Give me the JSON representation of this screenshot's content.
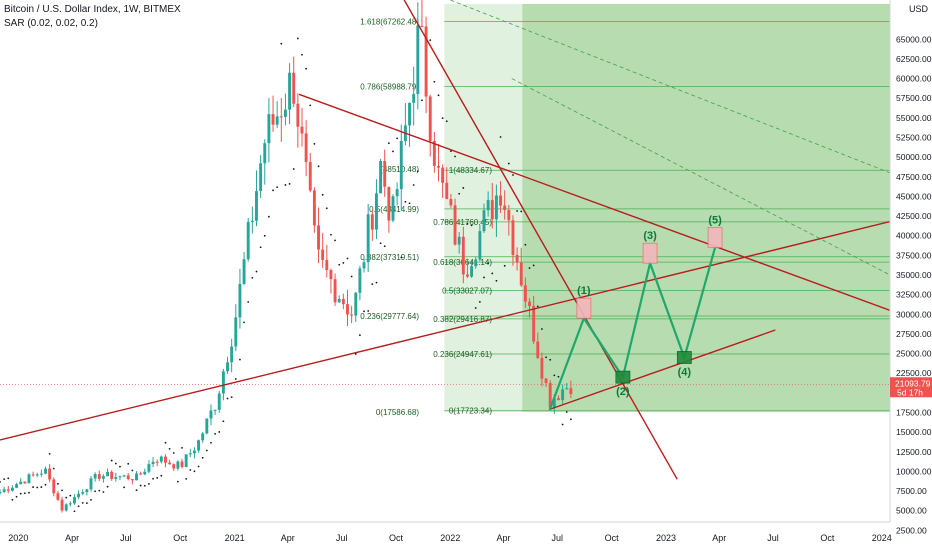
{
  "header": {
    "symbol_line": "Bitcoin / U.S. Dollar Index, 1W, BITMEX",
    "indicator_line": "SAR (0.02, 0.02, 0.2)"
  },
  "chart_data": {
    "type": "candlestick",
    "title": "Bitcoin / U.S. Dollar Index, 1W, BITMEX",
    "indicator": "SAR (0.02, 0.02, 0.2)",
    "price_axis": {
      "currency": "USD",
      "range": [
        0,
        70000
      ],
      "ticks": [
        2500,
        5000,
        7500,
        10000,
        12500,
        15000,
        17500,
        20000,
        22500,
        25000,
        27500,
        30000,
        32500,
        35000,
        37500,
        40000,
        42500,
        45000,
        47500,
        50000,
        52500,
        55000,
        57500,
        60000,
        62500,
        65000
      ],
      "tick_labels": [
        "2500.00",
        "5000.00",
        "7500.00",
        "10000.00",
        "12500.00",
        "15000.00",
        "17500.00",
        "20000.00",
        "22500.00",
        "25000.00",
        "27500.00",
        "30000.00",
        "32500.00",
        "35000.00",
        "37500.00",
        "40000.00",
        "42500.00",
        "45000.00",
        "47500.00",
        "50000.00",
        "52500.00",
        "55000.00",
        "57500.00",
        "60000.00",
        "62500.00",
        "65000.00"
      ]
    },
    "time_axis": {
      "range": [
        "2019-12-01",
        "2024-01-15"
      ],
      "ticks": [
        {
          "date": "2020-01-01",
          "label": "2020"
        },
        {
          "date": "2020-04-01",
          "label": "Apr"
        },
        {
          "date": "2020-07-01",
          "label": "Jul"
        },
        {
          "date": "2020-10-01",
          "label": "Oct"
        },
        {
          "date": "2021-01-01",
          "label": "2021"
        },
        {
          "date": "2021-04-01",
          "label": "Apr"
        },
        {
          "date": "2021-07-01",
          "label": "Jul"
        },
        {
          "date": "2021-10-01",
          "label": "Oct"
        },
        {
          "date": "2022-01-01",
          "label": "2022"
        },
        {
          "date": "2022-04-01",
          "label": "Apr"
        },
        {
          "date": "2022-07-01",
          "label": "Jul"
        },
        {
          "date": "2022-10-01",
          "label": "Oct"
        },
        {
          "date": "2023-01-01",
          "label": "2023"
        },
        {
          "date": "2023-04-01",
          "label": "Apr"
        },
        {
          "date": "2023-07-01",
          "label": "Jul"
        },
        {
          "date": "2023-10-01",
          "label": "Oct"
        },
        {
          "date": "2024-01-01",
          "label": "2024"
        }
      ]
    },
    "last_price": {
      "value": 21093.79,
      "label": "21093.79",
      "countdown": "5d 17h"
    },
    "price_path_anchors": [
      {
        "date": "2019-12-01",
        "value": 7400
      },
      {
        "date": "2020-02-15",
        "value": 10200
      },
      {
        "date": "2020-03-15",
        "value": 5200
      },
      {
        "date": "2020-05-15",
        "value": 9500
      },
      {
        "date": "2020-07-20",
        "value": 9200
      },
      {
        "date": "2020-08-20",
        "value": 11800
      },
      {
        "date": "2020-10-01",
        "value": 10600
      },
      {
        "date": "2020-11-01",
        "value": 13800
      },
      {
        "date": "2020-12-01",
        "value": 19000
      },
      {
        "date": "2021-01-01",
        "value": 29000
      },
      {
        "date": "2021-02-20",
        "value": 52000
      },
      {
        "date": "2021-04-10",
        "value": 60000
      },
      {
        "date": "2021-05-20",
        "value": 37000
      },
      {
        "date": "2021-07-20",
        "value": 30000
      },
      {
        "date": "2021-09-05",
        "value": 49000
      },
      {
        "date": "2021-09-25",
        "value": 42000
      },
      {
        "date": "2021-11-10",
        "value": 66000
      },
      {
        "date": "2021-12-10",
        "value": 48000
      },
      {
        "date": "2022-01-25",
        "value": 36000
      },
      {
        "date": "2022-03-28",
        "value": 46500
      },
      {
        "date": "2022-05-15",
        "value": 30000
      },
      {
        "date": "2022-06-18",
        "value": 19000
      },
      {
        "date": "2022-07-10",
        "value": 20500
      },
      {
        "date": "2022-07-24",
        "value": 21094
      }
    ],
    "fib_labels_left": [
      {
        "text": "1.618(67262.48)",
        "value": 67262.48
      },
      {
        "text": "0.786(58988.79)",
        "value": 58988.79
      },
      {
        "text": "(48510.48)",
        "value": 48510.48
      },
      {
        "text": "0.5(43414.99)",
        "value": 43414.99
      },
      {
        "text": "0.382(37319.51)",
        "value": 37319.51
      },
      {
        "text": "0.236(29777.64)",
        "value": 29777.64
      },
      {
        "text": "0(17586.68)",
        "value": 17586.68
      }
    ],
    "fib_labels_right": [
      {
        "text": "1(48334.67)",
        "value": 48334.67
      },
      {
        "text": "0.786(41760.45)",
        "value": 41760.45
      },
      {
        "text": "0.618(36641.14)",
        "value": 36641.14
      },
      {
        "text": "0.5(33027.07)",
        "value": 33027.07
      },
      {
        "text": "0.382(29416.87)",
        "value": 29416.87
      },
      {
        "text": "0.236(24947.61)",
        "value": 24947.61
      },
      {
        "text": "0(17723.34)",
        "value": 17723.34
      }
    ],
    "horizontal_levels": [
      67262.48,
      58988.79,
      48334.67,
      43414.99,
      41760.45,
      37319.51,
      36641.14,
      33027.07,
      29777.64,
      29416.87,
      24947.61,
      17723.34
    ],
    "wave_projection": [
      {
        "label": "",
        "date": "2022-06-18",
        "value": 17800
      },
      {
        "label": "(1)",
        "date": "2022-08-15",
        "value": 29500
      },
      {
        "label": "(2)",
        "date": "2022-10-20",
        "value": 22000
      },
      {
        "label": "(3)",
        "date": "2022-12-05",
        "value": 36500
      },
      {
        "label": "(4)",
        "date": "2023-02-01",
        "value": 24500
      },
      {
        "label": "(5)",
        "date": "2023-03-25",
        "value": 38500
      }
    ],
    "trendlines": [
      {
        "name": "long-support",
        "from": {
          "date": "2019-12-01",
          "value": 14000
        },
        "to": {
          "date": "2024-01-15",
          "value": 41800
        }
      },
      {
        "name": "descending-resistance",
        "from": {
          "date": "2021-04-20",
          "value": 58000
        },
        "to": {
          "date": "2024-01-15",
          "value": 30500
        }
      },
      {
        "name": "steep-decline",
        "from": {
          "date": "2021-10-15",
          "value": 70000
        },
        "to": {
          "date": "2023-01-20",
          "value": 9000
        }
      },
      {
        "name": "wave-channel",
        "from": {
          "date": "2022-06-18",
          "value": 17900
        },
        "to": {
          "date": "2023-07-05",
          "value": 28000
        }
      }
    ],
    "legend_position": "top-left",
    "grid": false,
    "colors": {
      "up": "#26a69a",
      "down": "#ef5350",
      "sar": "#131722",
      "fib_line": "#4caf50",
      "fib_text": "#1b5e20",
      "zone": "#a9d6a2",
      "trend": "#b71c1c",
      "wave": "#1fa86b",
      "wave_label": "#0d7a3c",
      "price_tag": "#ef5350"
    }
  }
}
